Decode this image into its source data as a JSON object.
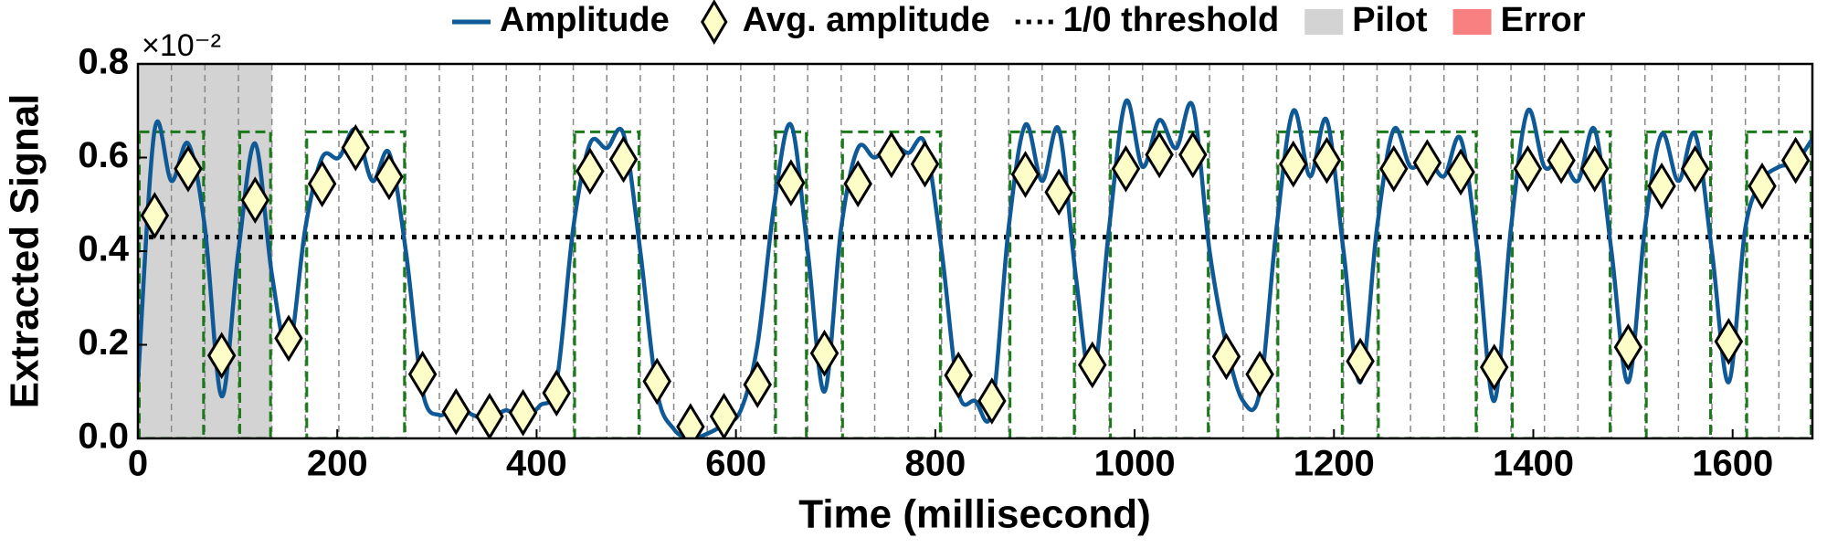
{
  "chart_data": {
    "type": "line",
    "xlabel": "Time (millisecond)",
    "ylabel": "Extracted Signal",
    "y_multiplier": "×10⁻²",
    "xlim": [
      0,
      1680
    ],
    "ylim": [
      0,
      0.8
    ],
    "xticks": [
      0,
      200,
      400,
      600,
      800,
      1000,
      1200,
      1400,
      1600
    ],
    "yticks": [
      {
        "value": 0,
        "label": "0.0"
      },
      0.2,
      0.4,
      0.6,
      0.8
    ],
    "legend": "top",
    "series": [
      {
        "name": "Amplitude",
        "color": "#0f5a96",
        "x": [
          0,
          16.8,
          33.6,
          50.4,
          67.2,
          84,
          100.8,
          117.6,
          134.4,
          151.2,
          168,
          184.8,
          201.6,
          218.4,
          235.2,
          252,
          268.8,
          285.6,
          302.4,
          319.2,
          336,
          352.8,
          369.6,
          386.4,
          403.2,
          420,
          436.8,
          453.6,
          470.4,
          487.2,
          504,
          520.8,
          537.6,
          554.4,
          571.2,
          588,
          604.8,
          621.6,
          638.4,
          655.2,
          672,
          688.8,
          705.6,
          722.4,
          739.2,
          756,
          772.8,
          789.6,
          806.4,
          823.2,
          840,
          856.8,
          873.6,
          890.4,
          907.2,
          924,
          940.8,
          957.6,
          974.4,
          991.2,
          1008,
          1024.8,
          1041.6,
          1058.4,
          1075.2,
          1092,
          1108.8,
          1125.6,
          1142.4,
          1159.2,
          1176,
          1192.8,
          1209.6,
          1226.4,
          1243.2,
          1260,
          1276.8,
          1293.6,
          1310.4,
          1327.2,
          1344,
          1360.8,
          1377.6,
          1394.4,
          1411.2,
          1428,
          1444.8,
          1461.6,
          1478.4,
          1495.2,
          1512,
          1528.8,
          1545.6,
          1562.4,
          1579.2,
          1596,
          1612.8,
          1629.6,
          1646.4,
          1663.2,
          1680
        ],
        "values": [
          0.12,
          0.66,
          0.55,
          0.63,
          0.45,
          0.09,
          0.4,
          0.63,
          0.35,
          0.19,
          0.45,
          0.6,
          0.6,
          0.66,
          0.55,
          0.61,
          0.4,
          0.1,
          0.05,
          0.07,
          0.05,
          0.04,
          0.06,
          0.04,
          0.07,
          0.12,
          0.45,
          0.63,
          0.62,
          0.65,
          0.4,
          0.1,
          0.02,
          0.0,
          0.01,
          0.03,
          0.06,
          0.2,
          0.5,
          0.67,
          0.4,
          0.1,
          0.45,
          0.62,
          0.6,
          0.63,
          0.61,
          0.63,
          0.4,
          0.1,
          0.08,
          0.06,
          0.45,
          0.67,
          0.55,
          0.66,
          0.35,
          0.12,
          0.45,
          0.72,
          0.58,
          0.68,
          0.62,
          0.71,
          0.4,
          0.2,
          0.08,
          0.1,
          0.45,
          0.7,
          0.56,
          0.68,
          0.4,
          0.12,
          0.45,
          0.66,
          0.58,
          0.6,
          0.56,
          0.64,
          0.4,
          0.08,
          0.45,
          0.7,
          0.58,
          0.6,
          0.55,
          0.66,
          0.4,
          0.12,
          0.45,
          0.65,
          0.55,
          0.65,
          0.4,
          0.12,
          0.45,
          0.55,
          0.58,
          0.59,
          0.64
        ]
      },
      {
        "name": "Avg. amplitude",
        "type": "scatter",
        "marker": "diamond",
        "color": "#fdfdc8",
        "x": [
          16.8,
          50.4,
          84,
          117.6,
          151.2,
          184.8,
          218.4,
          252,
          285.6,
          319.2,
          352.8,
          386.4,
          420,
          453.6,
          487.2,
          520.8,
          554.4,
          588,
          621.6,
          655.2,
          688.8,
          722.4,
          756,
          789.6,
          823.2,
          856.8,
          890.4,
          924,
          957.6,
          991.2,
          1024.8,
          1058.4,
          1092,
          1125.6,
          1159.2,
          1192.8,
          1226.4,
          1260,
          1293.6,
          1327.2,
          1360.8,
          1394.4,
          1428,
          1461.6,
          1495.2,
          1528.8,
          1562.4,
          1596,
          1629.6,
          1663.2
        ],
        "values": [
          0.476,
          0.576,
          0.177,
          0.509,
          0.214,
          0.544,
          0.621,
          0.559,
          0.137,
          0.057,
          0.047,
          0.055,
          0.097,
          0.571,
          0.596,
          0.122,
          0.025,
          0.047,
          0.115,
          0.546,
          0.182,
          0.544,
          0.606,
          0.586,
          0.135,
          0.08,
          0.564,
          0.526,
          0.157,
          0.576,
          0.606,
          0.606,
          0.175,
          0.137,
          0.586,
          0.594,
          0.165,
          0.576,
          0.589,
          0.569,
          0.152,
          0.576,
          0.594,
          0.576,
          0.195,
          0.539,
          0.576,
          0.207,
          0.539,
          0.594
        ]
      }
    ],
    "threshold": {
      "name": "1/0 threshold",
      "value": 0.43,
      "color": "#000000"
    },
    "pilot": {
      "name": "Pilot",
      "color": "#d3d3d3",
      "x": [
        0,
        134.4
      ]
    },
    "error": {
      "name": "Error",
      "color": "#f88080"
    },
    "frames": {
      "color": "#1a7a1a",
      "height": 0.655,
      "x": [
        [
          0,
          67.2
        ],
        [
          100.8,
          134.4
        ],
        [
          168,
          268.8
        ],
        [
          436.8,
          504
        ],
        [
          638.4,
          672
        ],
        [
          705.6,
          806.4
        ],
        [
          873.6,
          940.8
        ],
        [
          974.4,
          1075.2
        ],
        [
          1142.4,
          1209.6
        ],
        [
          1243.2,
          1344
        ],
        [
          1377.6,
          1478.4
        ],
        [
          1512,
          1579.2
        ],
        [
          1612.8,
          1680
        ]
      ]
    },
    "slot_boundaries": [
      33.6,
      67.2,
      100.8,
      134.4,
      168,
      201.6,
      235.2,
      268.8,
      302.4,
      336,
      369.6,
      403.2,
      436.8,
      470.4,
      504,
      537.6,
      571.2,
      604.8,
      638.4,
      672,
      705.6,
      739.2,
      772.8,
      806.4,
      840,
      873.6,
      907.2,
      940.8,
      974.4,
      1008,
      1041.6,
      1075.2,
      1108.8,
      1142.4,
      1176,
      1209.6,
      1243.2,
      1276.8,
      1310.4,
      1344,
      1377.6,
      1411.2,
      1444.8,
      1478.4,
      1512,
      1545.6,
      1579.2,
      1612.8,
      1646.4
    ]
  }
}
